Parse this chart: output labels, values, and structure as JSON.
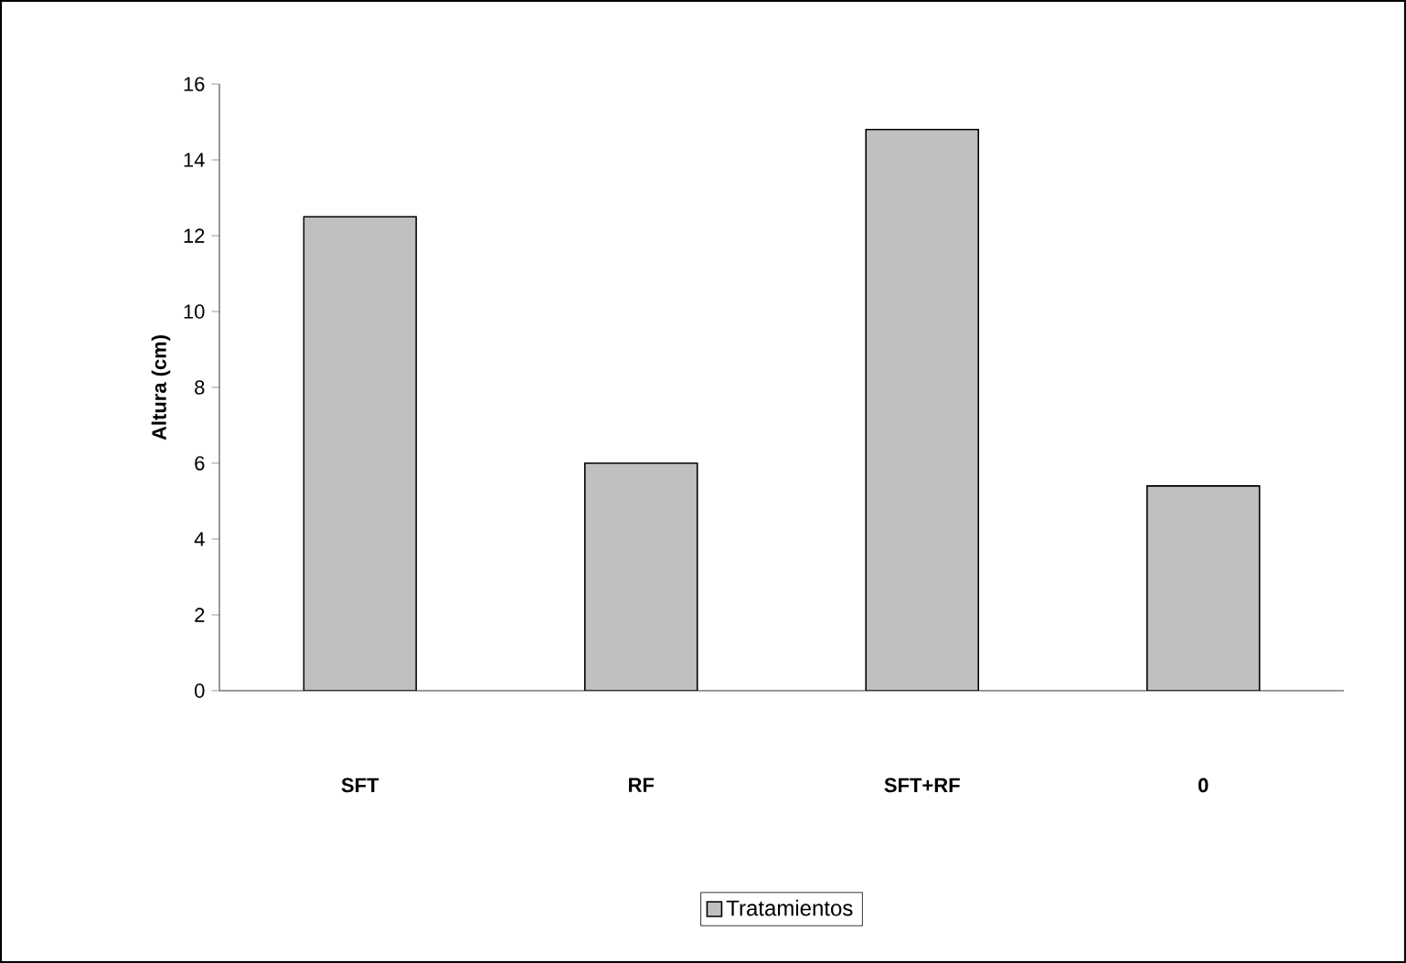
{
  "chart_data": {
    "type": "bar",
    "ylabel": "Altura (cm)",
    "categories": [
      "SFT",
      "RF",
      "SFT+RF",
      "0"
    ],
    "series": [
      {
        "name": "Tratamientos",
        "color": "#c0c0c0",
        "values": [
          12.5,
          6.0,
          14.8,
          5.4
        ]
      }
    ],
    "ylim": [
      0,
      16
    ],
    "yticks": [
      0,
      2,
      4,
      6,
      8,
      10,
      12,
      14,
      16
    ],
    "grid": false,
    "legend": "bottom"
  }
}
